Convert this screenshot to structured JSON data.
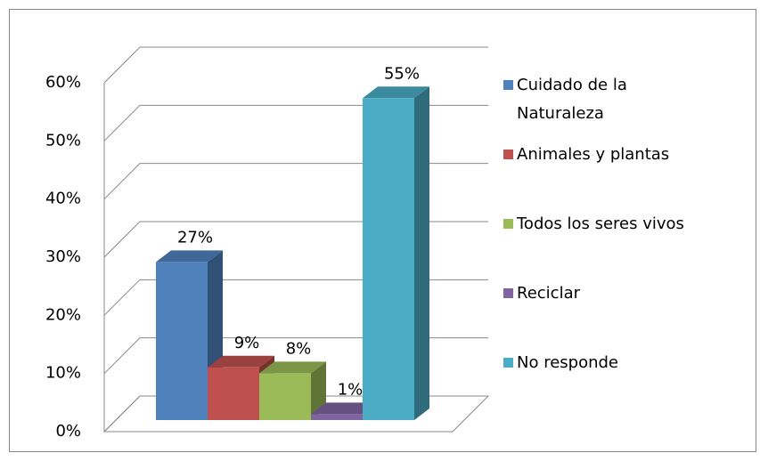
{
  "chart_data": {
    "type": "bar3d",
    "series": [
      {
        "name": "Cuidado de la Naturaleza",
        "color": "#4f81bd",
        "values": [
          27
        ],
        "value_labels": [
          "27%"
        ]
      },
      {
        "name": "Animales y plantas",
        "color": "#c0504d",
        "values": [
          9
        ],
        "value_labels": [
          "9%"
        ]
      },
      {
        "name": "Todos los seres vivos",
        "color": "#9bbb59",
        "values": [
          8
        ],
        "value_labels": [
          "8%"
        ]
      },
      {
        "name": "Reciclar",
        "color": "#8064a2",
        "values": [
          1
        ],
        "value_labels": [
          "1%"
        ]
      },
      {
        "name": "No responde",
        "color": "#4bacc6",
        "values": [
          55
        ],
        "value_labels": [
          "55%"
        ]
      }
    ],
    "ylim": [
      0,
      60
    ],
    "yticks": [
      {
        "value": 0,
        "label": "0%"
      },
      {
        "value": 10,
        "label": "10%"
      },
      {
        "value": 20,
        "label": "20%"
      },
      {
        "value": 30,
        "label": "30%"
      },
      {
        "value": 40,
        "label": "40%"
      },
      {
        "value": 50,
        "label": "50%"
      },
      {
        "value": 60,
        "label": "60%"
      }
    ],
    "grid": true,
    "legend": "right"
  }
}
